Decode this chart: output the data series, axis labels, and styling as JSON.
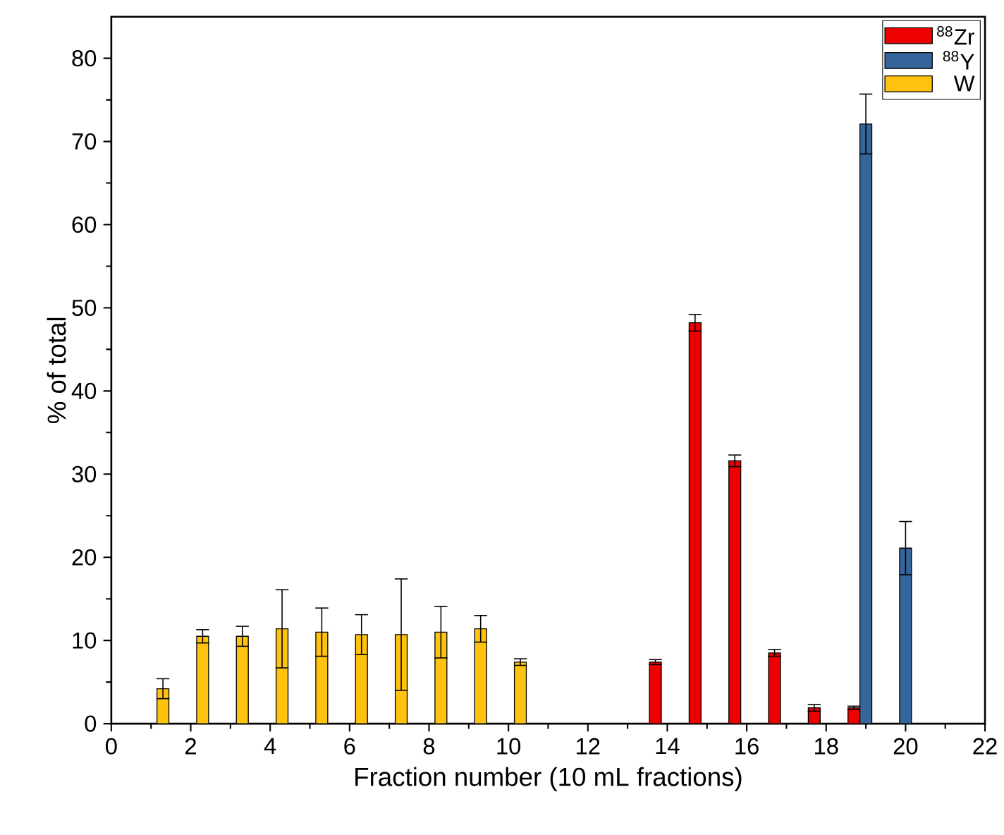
{
  "chart_data": {
    "type": "bar",
    "xlabel": "Fraction number (10 mL fractions)",
    "ylabel": "% of total",
    "xlim": [
      0,
      22
    ],
    "xticks": [
      0,
      2,
      4,
      6,
      8,
      10,
      12,
      14,
      16,
      18,
      20,
      22
    ],
    "ylim": [
      0,
      85
    ],
    "yticks": [
      0,
      10,
      20,
      30,
      40,
      50,
      60,
      70,
      80
    ],
    "legend": "top right",
    "series": [
      {
        "name": "$^{88}$Zr",
        "color": "#ee0000",
        "x": [
          13.7,
          14.7,
          15.7,
          16.7,
          17.7,
          18.7
        ],
        "values": [
          7.4,
          48.2,
          31.6,
          8.5,
          1.9,
          1.9
        ],
        "errors": [
          0.3,
          1.0,
          0.7,
          0.4,
          0.4,
          0.2
        ]
      },
      {
        "name": "$^{88}$Y",
        "color": "#35659a",
        "x": [
          19.0,
          20.0
        ],
        "values": [
          72.1,
          21.1
        ],
        "errors": [
          3.6,
          3.2
        ]
      },
      {
        "name": "W",
        "color": "#ffc20e",
        "x": [
          1.3,
          2.3,
          3.3,
          4.3,
          5.3,
          6.3,
          7.3,
          8.3,
          9.3,
          10.3
        ],
        "values": [
          4.2,
          10.5,
          10.5,
          11.4,
          11.0,
          10.7,
          10.7,
          11.0,
          11.4,
          7.4
        ],
        "errors": [
          1.2,
          0.8,
          1.2,
          4.7,
          2.9,
          2.4,
          6.7,
          3.1,
          1.6,
          0.4
        ]
      }
    ]
  }
}
